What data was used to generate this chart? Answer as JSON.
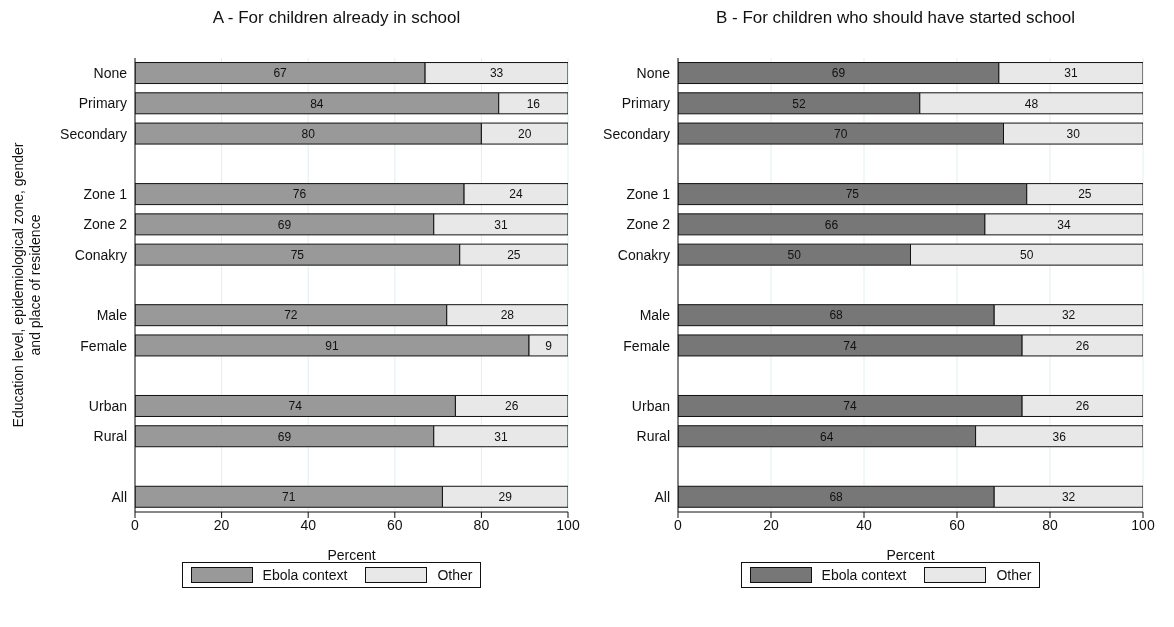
{
  "chart_data": [
    {
      "type": "bar",
      "orientation": "horizontal",
      "stacked": true,
      "title": "A - For children already in school",
      "xlabel": "Percent",
      "ylabel": "Education level, epidemiological zone, gender\nand place of residence",
      "categories": [
        "None",
        "Primary",
        "Secondary",
        null,
        "Zone 1",
        "Zone 2",
        "Conakry",
        null,
        "Male",
        "Female",
        null,
        "Urban",
        "Rural",
        null,
        "All"
      ],
      "series": [
        {
          "name": "Ebola context",
          "color": "#999999",
          "values": [
            67,
            84,
            80,
            null,
            76,
            69,
            75,
            null,
            72,
            91,
            null,
            74,
            69,
            null,
            71
          ]
        },
        {
          "name": "Other",
          "color": "#e8e8e8",
          "values": [
            33,
            16,
            20,
            null,
            24,
            31,
            25,
            null,
            28,
            9,
            null,
            26,
            31,
            null,
            29
          ]
        }
      ],
      "xlim": [
        0,
        100
      ],
      "xticks": [
        0,
        20,
        40,
        60,
        80,
        100
      ],
      "grid": "x",
      "legend": "bottom",
      "data_labels": true
    },
    {
      "type": "bar",
      "orientation": "horizontal",
      "stacked": true,
      "title": "B - For children who should have started school",
      "xlabel": "Percent",
      "categories": [
        "None",
        "Primary",
        "Secondary",
        null,
        "Zone 1",
        "Zone 2",
        "Conakry",
        null,
        "Male",
        "Female",
        null,
        "Urban",
        "Rural",
        null,
        "All"
      ],
      "series": [
        {
          "name": "Ebola context",
          "color": "#777777",
          "values": [
            69,
            52,
            70,
            null,
            75,
            66,
            50,
            null,
            68,
            74,
            null,
            74,
            64,
            null,
            68
          ]
        },
        {
          "name": "Other",
          "color": "#e8e8e8",
          "values": [
            31,
            48,
            30,
            null,
            25,
            34,
            50,
            null,
            32,
            26,
            null,
            26,
            36,
            null,
            32
          ]
        }
      ],
      "xlim": [
        0,
        100
      ],
      "xticks": [
        0,
        20,
        40,
        60,
        80,
        100
      ],
      "grid": "x",
      "legend": "bottom",
      "data_labels": true
    }
  ]
}
